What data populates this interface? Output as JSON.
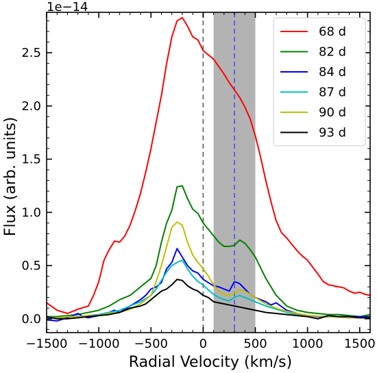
{
  "chart_data": {
    "type": "line",
    "title": "",
    "xlabel": "Radial Velocity (km/s)",
    "ylabel": "Flux (arb. units)",
    "y_offset_text": "1e−14",
    "xlim": [
      -1500,
      1600
    ],
    "ylim": [
      -0.13,
      2.88
    ],
    "x_ticks": [
      -1500,
      -1000,
      -500,
      0,
      500,
      1000,
      1500
    ],
    "x_tick_labels": [
      "−1500",
      "−1000",
      "−500",
      "0",
      "500",
      "1000",
      "1500"
    ],
    "y_ticks": [
      0.0,
      0.5,
      1.0,
      1.5,
      2.0,
      2.5
    ],
    "y_tick_labels": [
      "0.0",
      "0.5",
      "1.0",
      "1.5",
      "2.0",
      "2.5"
    ],
    "grid": false,
    "legend_position": "top-right",
    "shaded_band": {
      "x_start": 100,
      "x_end": 500,
      "color": "#b3b3b3"
    },
    "vlines": [
      {
        "x": 0,
        "color": "#777777",
        "style": "dashed"
      },
      {
        "x": 300,
        "color": "#6060ee",
        "style": "dashed"
      }
    ],
    "series": [
      {
        "name": "68 d",
        "color": "#ff0000",
        "x": [
          -1500,
          -1400,
          -1300,
          -1200,
          -1100,
          -1050,
          -1000,
          -950,
          -900,
          -850,
          -800,
          -750,
          -700,
          -650,
          -600,
          -550,
          -500,
          -450,
          -400,
          -350,
          -300,
          -250,
          -200,
          -150,
          -100,
          -50,
          0,
          50,
          100,
          150,
          200,
          250,
          300,
          350,
          400,
          450,
          500,
          550,
          600,
          650,
          700,
          750,
          800,
          850,
          900,
          950,
          1000,
          1100,
          1150,
          1200,
          1250,
          1300,
          1350,
          1400,
          1450,
          1500,
          1550,
          1600
        ],
        "y": [
          0.15,
          0.08,
          0.05,
          0.09,
          0.12,
          0.22,
          0.35,
          0.55,
          0.65,
          0.73,
          0.72,
          0.78,
          0.88,
          1.02,
          1.18,
          1.38,
          1.6,
          1.85,
          2.1,
          2.4,
          2.65,
          2.8,
          2.83,
          2.75,
          2.65,
          2.62,
          2.52,
          2.48,
          2.44,
          2.37,
          2.3,
          2.22,
          2.15,
          2.08,
          1.99,
          1.88,
          1.72,
          1.52,
          1.3,
          1.1,
          0.92,
          0.81,
          0.76,
          0.7,
          0.64,
          0.59,
          0.55,
          0.42,
          0.35,
          0.32,
          0.31,
          0.3,
          0.29,
          0.26,
          0.24,
          0.25,
          0.23,
          0.22
        ]
      },
      {
        "name": "82 d",
        "color": "#008000",
        "x": [
          -1500,
          -1400,
          -1300,
          -1200,
          -1100,
          -1000,
          -900,
          -800,
          -700,
          -600,
          -500,
          -450,
          -400,
          -350,
          -300,
          -250,
          -200,
          -150,
          -100,
          -50,
          0,
          50,
          100,
          150,
          200,
          250,
          300,
          350,
          400,
          450,
          500,
          550,
          600,
          650,
          700,
          750,
          800,
          850,
          900,
          1000,
          1100,
          1200,
          1300,
          1400,
          1500,
          1600
        ],
        "y": [
          0.02,
          0.02,
          0.03,
          0.04,
          0.06,
          0.08,
          0.12,
          0.18,
          0.22,
          0.3,
          0.38,
          0.5,
          0.72,
          0.9,
          1.02,
          1.24,
          1.25,
          1.13,
          1.03,
          0.99,
          0.9,
          0.84,
          0.78,
          0.72,
          0.68,
          0.68,
          0.69,
          0.74,
          0.71,
          0.65,
          0.58,
          0.48,
          0.38,
          0.3,
          0.22,
          0.17,
          0.12,
          0.1,
          0.08,
          0.06,
          0.05,
          0.04,
          0.04,
          0.03,
          0.02,
          0.04
        ]
      },
      {
        "name": "84 d",
        "color": "#0000ff",
        "x": [
          -1500,
          -1400,
          -1300,
          -1200,
          -1150,
          -1100,
          -1050,
          -1000,
          -950,
          -900,
          -850,
          -800,
          -750,
          -700,
          -650,
          -600,
          -550,
          -500,
          -450,
          -400,
          -350,
          -300,
          -250,
          -200,
          -150,
          -100,
          -50,
          0,
          50,
          100,
          150,
          200,
          250,
          300,
          350,
          400,
          450,
          500,
          550,
          600,
          650,
          700,
          800,
          900,
          1000,
          1100,
          1200,
          1300,
          1400,
          1500,
          1600
        ],
        "y": [
          -0.01,
          -0.02,
          0.01,
          0.05,
          0.02,
          0.01,
          0.02,
          0.03,
          0.05,
          0.06,
          0.08,
          0.06,
          0.09,
          0.12,
          0.15,
          0.18,
          0.22,
          0.28,
          0.3,
          0.34,
          0.47,
          0.53,
          0.66,
          0.58,
          0.5,
          0.45,
          0.43,
          0.37,
          0.34,
          0.31,
          0.3,
          0.28,
          0.26,
          0.35,
          0.33,
          0.28,
          0.23,
          0.2,
          0.18,
          0.16,
          0.13,
          0.15,
          0.08,
          0.05,
          0.03,
          0.02,
          0.02,
          0.02,
          0.02,
          0.02,
          0.02
        ]
      },
      {
        "name": "87 d",
        "color": "#00bfbf",
        "x": [
          -1500,
          -1400,
          -1300,
          -1200,
          -1100,
          -1000,
          -900,
          -800,
          -700,
          -600,
          -500,
          -450,
          -400,
          -350,
          -300,
          -250,
          -200,
          -150,
          -100,
          -50,
          0,
          50,
          100,
          150,
          200,
          250,
          300,
          350,
          400,
          450,
          500,
          600,
          700,
          800,
          900,
          1000,
          1200,
          1400,
          1600
        ],
        "y": [
          0.02,
          0.01,
          0.02,
          0.02,
          0.03,
          0.04,
          0.06,
          0.08,
          0.12,
          0.16,
          0.22,
          0.28,
          0.36,
          0.44,
          0.5,
          0.53,
          0.55,
          0.47,
          0.4,
          0.35,
          0.32,
          0.27,
          0.23,
          0.2,
          0.18,
          0.17,
          0.2,
          0.22,
          0.2,
          0.18,
          0.16,
          0.12,
          0.09,
          0.06,
          0.04,
          0.03,
          0.02,
          0.01,
          0.01
        ]
      },
      {
        "name": "90 d",
        "color": "#bfbf00",
        "x": [
          -1500,
          -1400,
          -1300,
          -1200,
          -1100,
          -1000,
          -900,
          -800,
          -700,
          -600,
          -500,
          -450,
          -400,
          -350,
          -300,
          -250,
          -200,
          -150,
          -100,
          -50,
          0,
          50,
          100,
          150,
          200,
          250,
          300,
          350,
          400,
          450,
          500,
          550,
          600,
          700,
          800,
          900,
          1000,
          1200,
          1400,
          1600
        ],
        "y": [
          0.01,
          0.01,
          0.02,
          0.02,
          0.03,
          0.03,
          0.05,
          0.06,
          0.09,
          0.14,
          0.22,
          0.35,
          0.5,
          0.68,
          0.86,
          0.91,
          0.88,
          0.72,
          0.6,
          0.53,
          0.47,
          0.4,
          0.32,
          0.26,
          0.23,
          0.22,
          0.24,
          0.27,
          0.26,
          0.23,
          0.2,
          0.17,
          0.14,
          0.1,
          0.07,
          0.05,
          0.03,
          0.02,
          0.01,
          0.01
        ]
      },
      {
        "name": "93 d",
        "color": "#000000",
        "x": [
          -1500,
          -1400,
          -1300,
          -1200,
          -1100,
          -1000,
          -900,
          -800,
          -700,
          -600,
          -550,
          -500,
          -450,
          -400,
          -350,
          -300,
          -250,
          -200,
          -150,
          -100,
          -50,
          0,
          50,
          100,
          150,
          200,
          250,
          300,
          350,
          400,
          500,
          600,
          700,
          800,
          900,
          1000,
          1100,
          1200,
          1300,
          1400,
          1500,
          1600
        ],
        "y": [
          0.02,
          0.0,
          0.0,
          0.01,
          0.02,
          0.03,
          0.04,
          0.06,
          0.1,
          0.12,
          0.14,
          0.18,
          0.22,
          0.26,
          0.28,
          0.32,
          0.37,
          0.36,
          0.31,
          0.28,
          0.26,
          0.22,
          0.2,
          0.16,
          0.15,
          0.14,
          0.13,
          0.12,
          0.11,
          0.1,
          0.08,
          0.06,
          0.05,
          0.04,
          0.03,
          0.02,
          0.0,
          0.03,
          0.02,
          0.02,
          0.01,
          0.01
        ]
      }
    ]
  }
}
